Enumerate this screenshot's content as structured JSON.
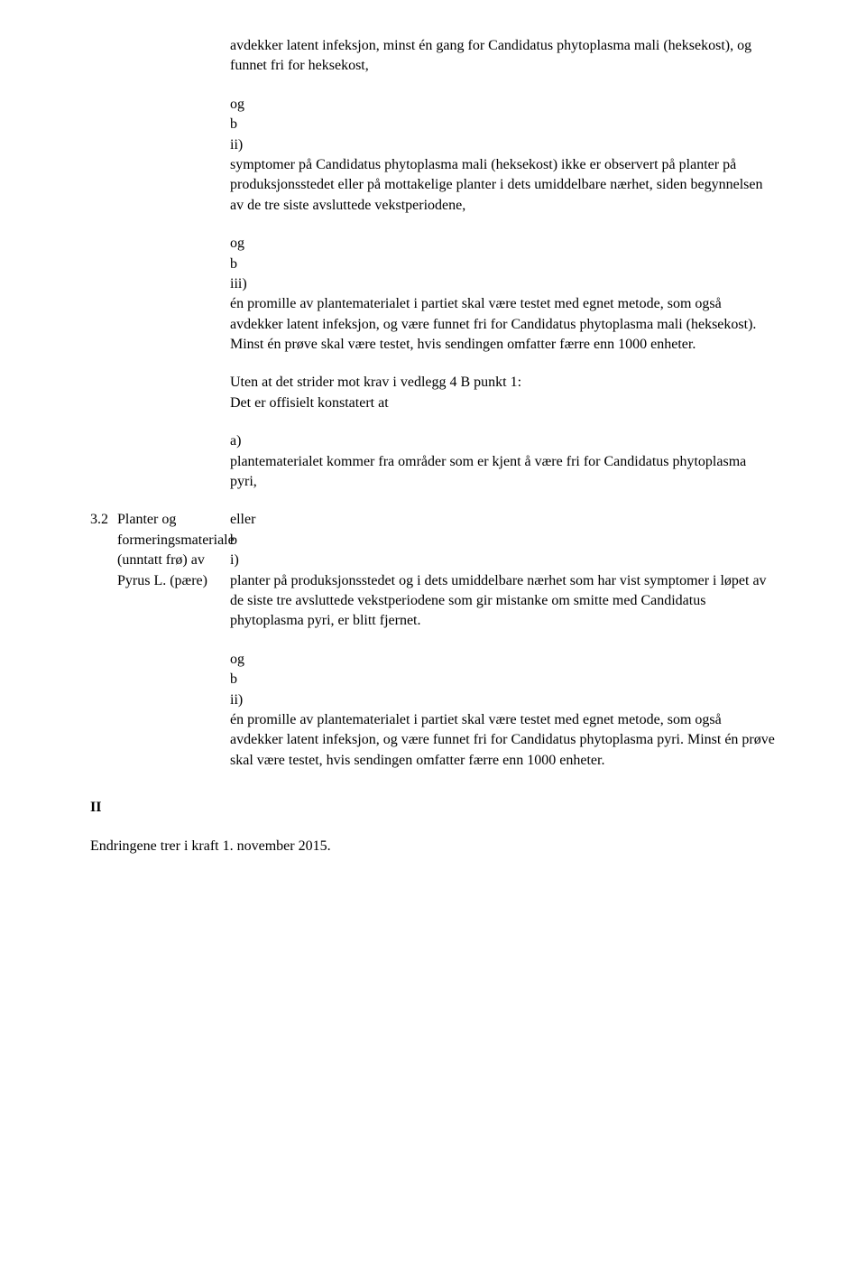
{
  "block1": {
    "p1": "avdekker latent infeksjon, minst én gang for Candidatus phytoplasma mali (heksekost), og funnet fri for heksekost,",
    "og1": "og",
    "b1": "b",
    "ii": "ii)",
    "p2": "symptomer på Candidatus phytoplasma mali (heksekost) ikke er observert på planter på produksjonsstedet eller på mottakelige planter i dets umiddelbare nærhet, siden begynnelsen av de tre siste avsluttede vekstperiodene,",
    "og2": "og",
    "b2": "b",
    "iii": "iii)",
    "p3": "én promille av plantematerialet i partiet skal være testet med egnet metode, som også avdekker latent infeksjon, og være funnet fri for Candidatus phytoplasma mali (heksekost). Minst én prøve skal være testet, hvis sendingen omfatter færre enn 1000 enheter.",
    "p4a": "Uten at det strider mot krav i vedlegg 4 B punkt 1:",
    "p4b": "Det er offisielt konstatert at",
    "a": "a)",
    "p5": "plantematerialet kommer fra områder som er kjent å være fri for Candidatus phytoplasma pyri,"
  },
  "row32": {
    "num": "3.2",
    "left": "Planter og formeringsmateriale (unntatt frø) av Pyrus L. (pære)",
    "eller": "eller",
    "b": "b",
    "i": "i)",
    "p": "planter på produksjonsstedet og i dets umiddelbare nærhet som har vist symptomer i løpet av de siste tre avsluttede vekstperiodene som gir mistanke om smitte med Candidatus phytoplasma pyri, er blitt fjernet."
  },
  "block2": {
    "og": "og",
    "b": "b",
    "ii": "ii)",
    "p": "én promille av plantematerialet i partiet skal være testet med egnet metode, som også avdekker latent infeksjon, og være funnet fri for Candidatus phytoplasma pyri. Minst én prøve skal være testet, hvis sendingen omfatter færre enn 1000 enheter."
  },
  "sectionII": "II",
  "footer": "Endringene trer i kraft 1. november 2015."
}
